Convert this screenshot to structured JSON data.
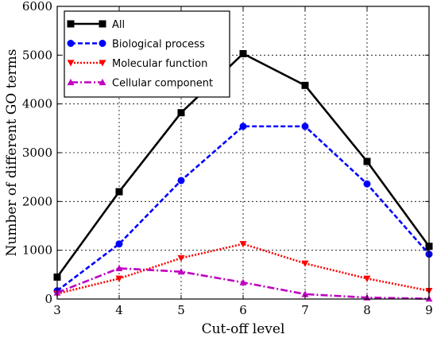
{
  "chart_data": {
    "type": "line",
    "x": [
      3,
      4,
      5,
      6,
      7,
      8,
      9
    ],
    "series": [
      {
        "name": "All",
        "color": "#000000",
        "marker": "square",
        "line_style": "solid",
        "values": [
          450,
          2200,
          3820,
          5030,
          4380,
          2820,
          1080
        ]
      },
      {
        "name": "Biological process",
        "color": "#0000ff",
        "marker": "circle",
        "line_style": "dashed",
        "values": [
          170,
          1130,
          2430,
          3540,
          3540,
          2360,
          920
        ]
      },
      {
        "name": "Molecular function",
        "color": "#ff0000",
        "marker": "triangle-down",
        "line_style": "dotted",
        "values": [
          110,
          420,
          840,
          1130,
          730,
          420,
          170
        ]
      },
      {
        "name": "Cellular component",
        "color": "#bf00bf",
        "marker": "triangle-up",
        "line_style": "dash-dot",
        "values": [
          130,
          630,
          560,
          340,
          100,
          30,
          5
        ]
      }
    ],
    "xlabel": "Cut-off level",
    "ylabel": "Number of different GO terms",
    "xlim": [
      3,
      9
    ],
    "ylim": [
      0,
      6000
    ],
    "xticks": [
      "3",
      "4",
      "5",
      "6",
      "7",
      "8",
      "9"
    ],
    "yticks": [
      "0",
      "1000",
      "2000",
      "3000",
      "4000",
      "5000",
      "6000"
    ],
    "grid": true,
    "legend_position": "upper-left"
  }
}
